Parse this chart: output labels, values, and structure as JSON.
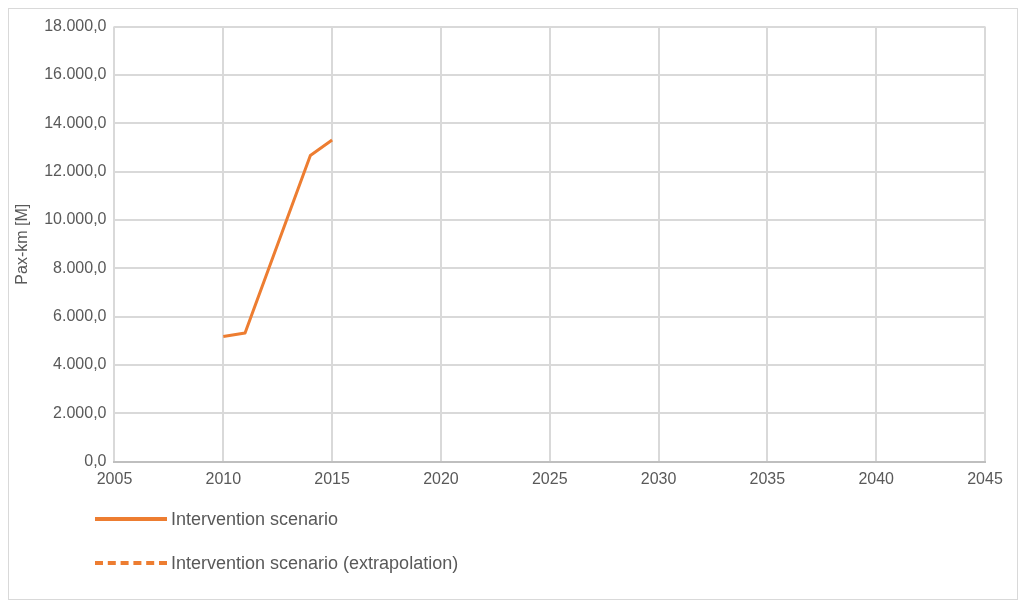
{
  "chart_data": {
    "type": "line",
    "ylabel": "Pax-km [M]",
    "x": [
      2010,
      2011,
      2014,
      2015
    ],
    "series": [
      {
        "name": "Intervention scenario",
        "color": "#ed7d31",
        "values": [
          5180,
          5330,
          12670,
          13310
        ],
        "line_style": "solid"
      },
      {
        "name": "Intervention scenario (extrapolation)",
        "color": "#ed7d31",
        "values": [
          null,
          null,
          null,
          null
        ],
        "line_style": "dashed"
      }
    ],
    "xlim": [
      2005,
      2045
    ],
    "xticks": [
      2005,
      2010,
      2015,
      2020,
      2025,
      2030,
      2035,
      2040,
      2045
    ],
    "ylim": [
      0,
      18000
    ],
    "yticks": [
      {
        "value": 0,
        "label": "0,0"
      },
      {
        "value": 2000,
        "label": "2.000,0"
      },
      {
        "value": 4000,
        "label": "4.000,0"
      },
      {
        "value": 6000,
        "label": "6.000,0"
      },
      {
        "value": 8000,
        "label": "8.000,0"
      },
      {
        "value": 10000,
        "label": "10.000,0"
      },
      {
        "value": 12000,
        "label": "12.000,0"
      },
      {
        "value": 14000,
        "label": "14.000,0"
      },
      {
        "value": 16000,
        "label": "16.000,0"
      },
      {
        "value": 18000,
        "label": "18.000,0"
      }
    ],
    "grid": true,
    "legend": "bottom",
    "marker": "none"
  }
}
